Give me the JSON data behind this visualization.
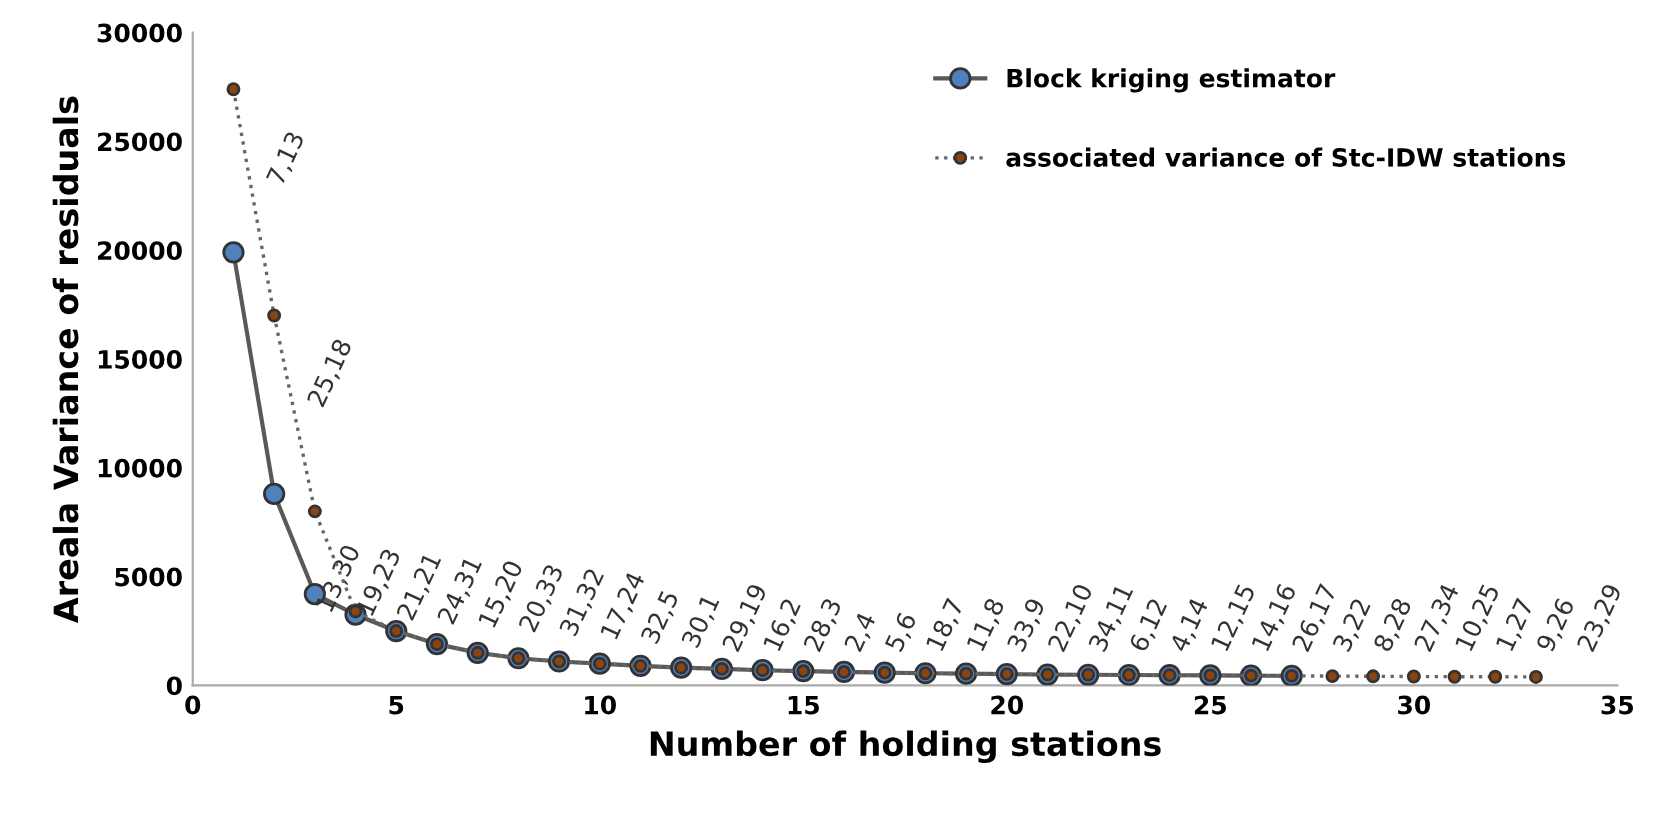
{
  "chart_data": {
    "type": "line",
    "xlabel": "Number of holding stations",
    "ylabel": "Areala Variance of residuals",
    "xlim": [
      0,
      35
    ],
    "xticks": [
      0,
      5,
      10,
      15,
      20,
      25,
      30,
      35
    ],
    "ylim": [
      0,
      30000
    ],
    "yticks": [
      0,
      5000,
      10000,
      15000,
      20000,
      25000,
      30000
    ],
    "grid": false,
    "legend": "top right",
    "series": [
      {
        "name": "Block kriging estimator",
        "color": "#4f81bd",
        "marker": "circle",
        "line_style": "solid",
        "x": [
          1,
          2,
          3,
          4,
          5,
          6,
          7,
          8,
          9,
          10,
          11,
          12,
          13,
          14,
          15,
          16,
          17,
          18,
          19,
          20,
          21,
          22,
          23,
          24,
          25,
          26,
          27
        ],
        "values": [
          19900,
          8800,
          4200,
          3250,
          2500,
          1900,
          1500,
          1250,
          1100,
          1000,
          900,
          820,
          760,
          700,
          660,
          620,
          590,
          560,
          540,
          520,
          500,
          490,
          480,
          470,
          460,
          450,
          440
        ]
      },
      {
        "name": "associated variance of Stc-IDW stations",
        "color": "#8b4513",
        "marker": "circle",
        "line_style": "dotted",
        "x": [
          1,
          2,
          3,
          4,
          5,
          6,
          7,
          8,
          9,
          10,
          11,
          12,
          13,
          14,
          15,
          16,
          17,
          18,
          19,
          20,
          21,
          22,
          23,
          24,
          25,
          26,
          27,
          28,
          29,
          30,
          31,
          32,
          33
        ],
        "values": [
          27400,
          17000,
          8000,
          3400,
          2500,
          1900,
          1500,
          1250,
          1100,
          1000,
          900,
          820,
          760,
          700,
          660,
          620,
          590,
          560,
          540,
          520,
          500,
          490,
          480,
          470,
          460,
          450,
          440,
          430,
          420,
          410,
          400,
          400,
          390
        ]
      }
    ],
    "annotations": [
      "7,13",
      "25,18",
      "13,30",
      "19,23",
      "21,21",
      "24,31",
      "15,20",
      "20,33",
      "31,32",
      "17,24",
      "32,5",
      "30,1",
      "29,19",
      "16,2",
      "28,3",
      "2,4",
      "5,6",
      "18,7",
      "11,8",
      "33,9",
      "22,10",
      "34,11",
      "6,12",
      "4,14",
      "12,15",
      "14,16",
      "26,17",
      "3,22",
      "8,28",
      "27,34",
      "10,25",
      "1,27",
      "9,26",
      "23,29"
    ]
  }
}
